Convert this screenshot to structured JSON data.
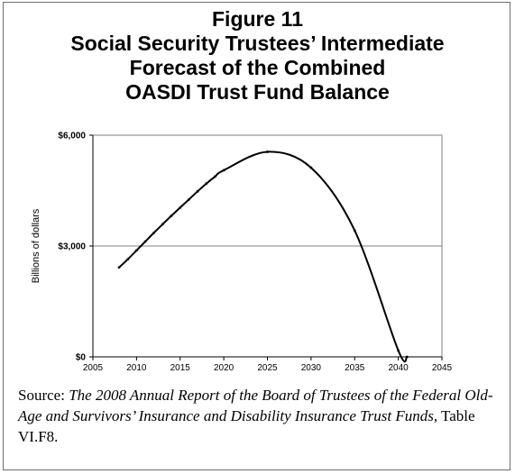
{
  "title_lines": [
    "Figure 11",
    "Social Security Trustees’ Intermediate",
    "Forecast of the Combined",
    "OASDI Trust Fund Balance"
  ],
  "chart_data": {
    "type": "line",
    "title": "",
    "xlabel": "",
    "ylabel": "Billions of dollars",
    "xlim": [
      2005,
      2045
    ],
    "ylim": [
      0,
      6000
    ],
    "x_ticks": [
      "2005",
      "2010",
      "2015",
      "2020",
      "2025",
      "2030",
      "2035",
      "2040",
      "2045"
    ],
    "y_ticks": [
      "$0",
      "$3,000",
      "$6,000"
    ],
    "grid": "horizontal",
    "series": [
      {
        "x": [
          2008,
          2009,
          2010,
          2011,
          2012,
          2013,
          2014,
          2015,
          2016,
          2017,
          2018,
          2019,
          2020,
          2025,
          2030,
          2035,
          2040,
          2041
        ],
        "values": [
          2420,
          2640,
          2880,
          3120,
          3360,
          3590,
          3820,
          4040,
          4260,
          4480,
          4690,
          4880,
          5050,
          5550,
          5120,
          3420,
          170,
          0
        ]
      }
    ]
  },
  "source": {
    "prefix": "Source: ",
    "title_italic": "The 2008 Annual Report of the Board of Trustees of the Federal Old-Age and Survivors’ Insurance and Disability Insurance Trust Funds",
    "suffix": ", Table VI.F8."
  }
}
